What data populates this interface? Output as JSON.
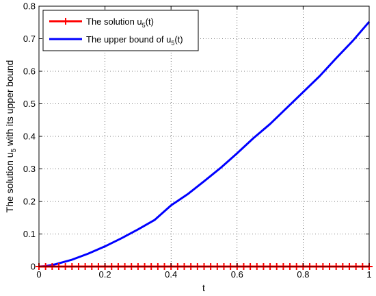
{
  "chart_data": {
    "type": "line",
    "xlabel": "t",
    "ylabel": "The solution u5 with its upper bound",
    "ylabel_parts": {
      "before": "The solution u",
      "sub": "5",
      "after": " with its upper bound"
    },
    "xlim": [
      0,
      1
    ],
    "ylim": [
      0,
      0.8
    ],
    "xticks": [
      "0",
      "0.2",
      "0.4",
      "0.6",
      "0.8",
      "1"
    ],
    "yticks": [
      "0",
      "0.1",
      "0.2",
      "0.3",
      "0.4",
      "0.5",
      "0.6",
      "0.7",
      "0.8"
    ],
    "grid": true,
    "legend_position": "top-left",
    "series": [
      {
        "name": "The solution u5(t)",
        "legend_parts": {
          "before": "The solution u",
          "sub": "5",
          "after": "(t)"
        },
        "color": "#ff0000",
        "marker": "plus",
        "x": [
          0,
          0.02,
          0.04,
          0.06,
          0.08,
          0.1,
          0.12,
          0.14,
          0.16,
          0.18,
          0.2,
          0.22,
          0.24,
          0.26,
          0.28,
          0.3,
          0.32,
          0.34,
          0.36,
          0.38,
          0.4,
          0.42,
          0.44,
          0.46,
          0.48,
          0.5,
          0.52,
          0.54,
          0.56,
          0.58,
          0.6,
          0.62,
          0.64,
          0.66,
          0.68,
          0.7,
          0.72,
          0.74,
          0.76,
          0.78,
          0.8,
          0.82,
          0.84,
          0.86,
          0.88,
          0.9,
          0.92,
          0.94,
          0.96,
          0.98,
          1
        ],
        "y": [
          0,
          0,
          0,
          0,
          0,
          0,
          0,
          0,
          0,
          0,
          0,
          0,
          0,
          0,
          0,
          0,
          0,
          0,
          0,
          0,
          0,
          0,
          0,
          0,
          0,
          0,
          0,
          0,
          0,
          0,
          0,
          0,
          0,
          0,
          0,
          0,
          0,
          0,
          0,
          0,
          0,
          0,
          0,
          0,
          0,
          0,
          0,
          0,
          0,
          0,
          0
        ]
      },
      {
        "name": "The upper bound of u5(t)",
        "legend_parts": {
          "before": "The upper bound of u",
          "sub": "5",
          "after": "(t)"
        },
        "color": "#0000ff",
        "marker": "none",
        "x": [
          0,
          0.02,
          0.05,
          0.1,
          0.15,
          0.2,
          0.25,
          0.3,
          0.35,
          0.4,
          0.45,
          0.5,
          0.55,
          0.6,
          0.65,
          0.7,
          0.75,
          0.8,
          0.85,
          0.9,
          0.95,
          1
        ],
        "y": [
          0,
          0.001,
          0.007,
          0.021,
          0.04,
          0.062,
          0.087,
          0.114,
          0.143,
          0.188,
          0.222,
          0.262,
          0.303,
          0.348,
          0.395,
          0.438,
          0.487,
          0.536,
          0.585,
          0.64,
          0.693,
          0.752
        ]
      }
    ]
  }
}
